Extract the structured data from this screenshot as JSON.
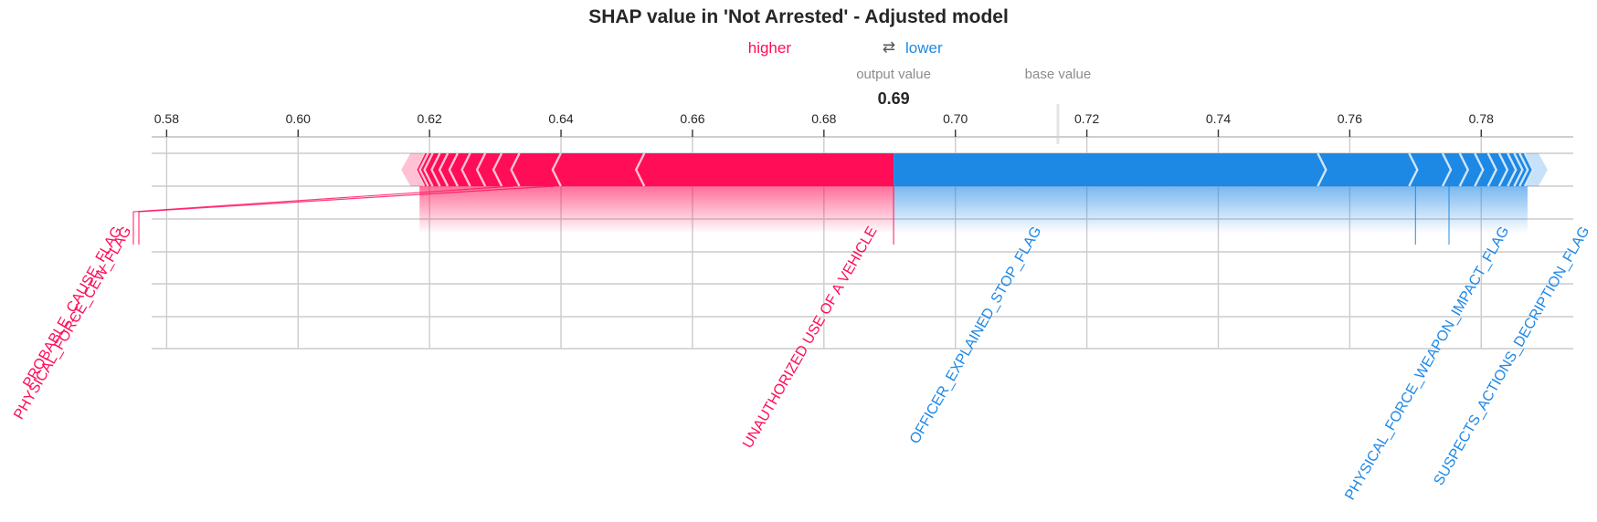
{
  "chart_data": {
    "type": "force",
    "title": "SHAP value in 'Not Arrested' - Adjusted model",
    "legend": {
      "higher": "higher",
      "arrow": "⇄",
      "lower": "lower"
    },
    "output_value_label": "output value",
    "base_value_label": "base value",
    "output_value": 0.6906,
    "output_value_text": "0.69",
    "base_value": 0.7156,
    "xlim": [
      0.578,
      0.794
    ],
    "ticks": [
      {
        "value": 0.58,
        "label": "0.58"
      },
      {
        "value": 0.6,
        "label": "0.60"
      },
      {
        "value": 0.62,
        "label": "0.62"
      },
      {
        "value": 0.64,
        "label": "0.64"
      },
      {
        "value": 0.66,
        "label": "0.66"
      },
      {
        "value": 0.68,
        "label": "0.68"
      },
      {
        "value": 0.7,
        "label": "0.70"
      },
      {
        "value": 0.72,
        "label": "0.72"
      },
      {
        "value": 0.74,
        "label": "0.74"
      },
      {
        "value": 0.76,
        "label": "0.76"
      },
      {
        "value": 0.78,
        "label": "0.78"
      }
    ],
    "positive_boundaries": [
      0.6906,
      0.6517,
      0.639,
      0.6327,
      0.63,
      0.6275,
      0.6252,
      0.6233,
      0.6218,
      0.6206,
      0.6195,
      0.6188,
      0.6182
    ],
    "negative_boundaries": [
      0.6906,
      0.7561,
      0.77,
      0.7751,
      0.7777,
      0.78,
      0.782,
      0.7837,
      0.785,
      0.786,
      0.7868,
      0.7876
    ],
    "labels": [
      {
        "text": "UNAUTHORIZED USE OF A VEHICLE",
        "side": "higher",
        "from": 0.6906,
        "to": 0.6517
      },
      {
        "text": "PHYSICAL_FORCE_CEW_FLAG",
        "side": "higher",
        "from": 0.6517,
        "to": 0.639
      },
      {
        "text": "PROBABLE_CAUSE_FLAG",
        "side": "higher",
        "from": 0.639,
        "to": 0.6327
      },
      {
        "text": "OFFICER_EXPLAINED_STOP_FLAG",
        "side": "lower",
        "from": 0.6906,
        "to": 0.7561
      },
      {
        "text": "PHYSICAL_FORCE_WEAPON_IMPACT_FLAG",
        "side": "lower",
        "from": 0.7561,
        "to": 0.77
      },
      {
        "text": "SUSPECTS_ACTIONS_DECRIPTION_FLAG",
        "side": "lower",
        "from": 0.77,
        "to": 0.7751
      }
    ],
    "colors": {
      "higher": "#ff0d57",
      "lower": "#1e88e5",
      "grid": "#cccccc",
      "axis": "#c8c8c8"
    }
  }
}
